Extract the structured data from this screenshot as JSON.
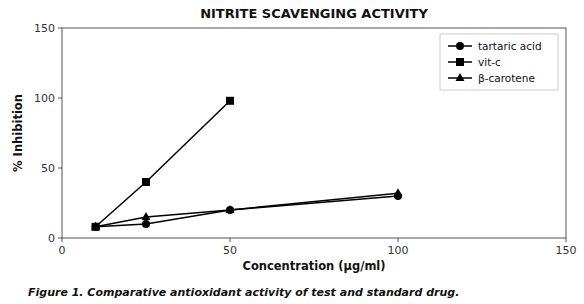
{
  "chart_data": {
    "type": "line",
    "title": "NITRITE SCAVENGING ACTIVITY",
    "x_label": "Concentration (μg/ml)",
    "y_label": "% Inhibition",
    "caption": "Figure 1. Comparative antioxidant activity of test and standard drug.",
    "xlim": [
      0,
      150
    ],
    "ylim": [
      0,
      150
    ],
    "xticks": [
      0,
      50,
      100,
      150
    ],
    "yticks": [
      0,
      50,
      100,
      150
    ],
    "grid": false,
    "legend": "upper right",
    "series": [
      {
        "name": "tartaric acid",
        "color": "#000000",
        "marker": "circle",
        "x": [
          10,
          25,
          50,
          100
        ],
        "values": [
          8,
          10,
          20,
          30
        ]
      },
      {
        "name": "vit-c",
        "color": "#000000",
        "marker": "square",
        "x": [
          10,
          25,
          50
        ],
        "values": [
          8,
          40,
          98
        ]
      },
      {
        "name": "β-carotene",
        "color": "#000000",
        "marker": "triangle",
        "x": [
          10,
          25,
          50,
          100
        ],
        "values": [
          8,
          15,
          20,
          32
        ]
      }
    ]
  }
}
